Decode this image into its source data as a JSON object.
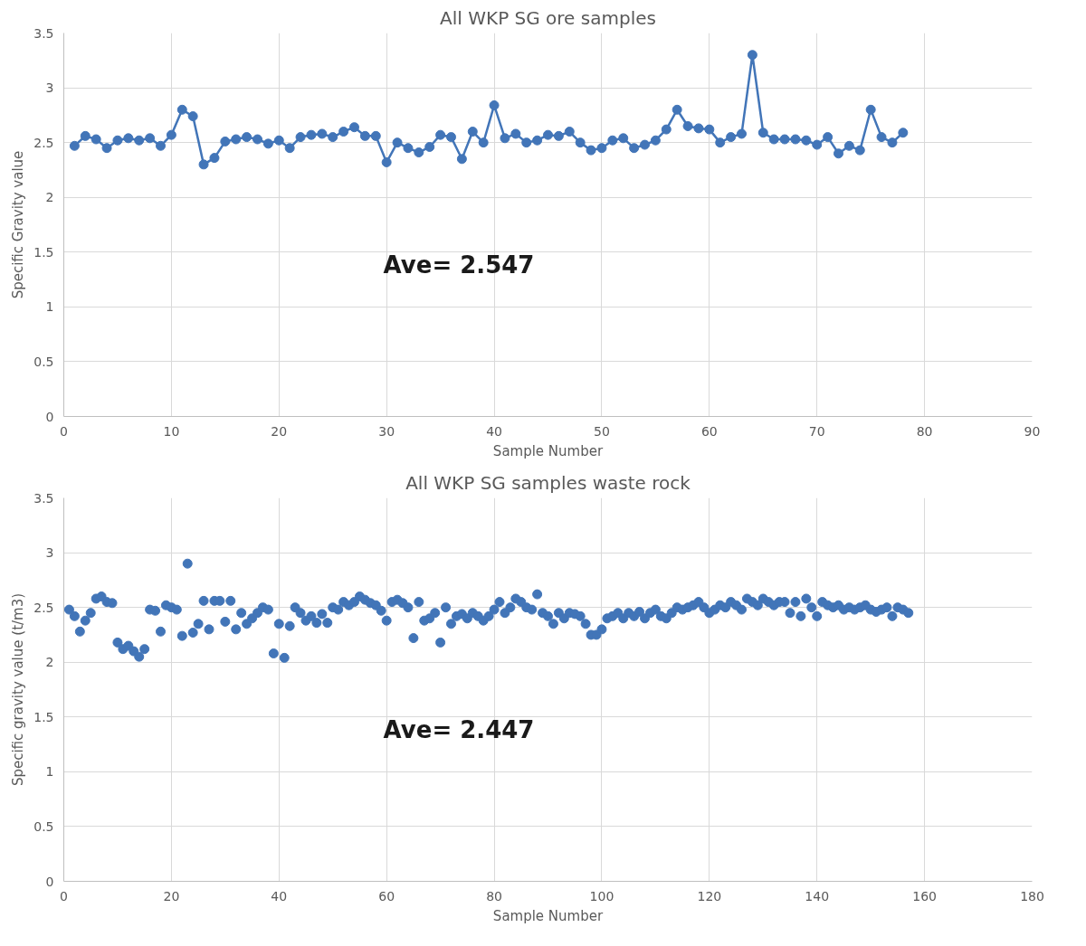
{
  "chart_data": [
    {
      "type": "line",
      "title": "All WKP SG ore samples",
      "xlabel": "Sample Number",
      "ylabel": "Specific Gravity value",
      "annotations": [
        "Ave= 2.547"
      ],
      "marker": "circle",
      "line_style": "solid",
      "grid": true,
      "xlim": [
        0,
        90
      ],
      "xticks": [
        0,
        10,
        20,
        30,
        40,
        50,
        60,
        70,
        80,
        90
      ],
      "ylim": [
        0,
        3.5
      ],
      "yticks": [
        0,
        0.5,
        1,
        1.5,
        2,
        2.5,
        3,
        3.5
      ],
      "x": [
        1,
        2,
        3,
        4,
        5,
        6,
        7,
        8,
        9,
        10,
        11,
        12,
        13,
        14,
        15,
        16,
        17,
        18,
        19,
        20,
        21,
        22,
        23,
        24,
        25,
        26,
        27,
        28,
        29,
        30,
        31,
        32,
        33,
        34,
        35,
        36,
        37,
        38,
        39,
        40,
        41,
        42,
        43,
        44,
        45,
        46,
        47,
        48,
        49,
        50,
        51,
        52,
        53,
        54,
        55,
        56,
        57,
        58,
        59,
        60,
        61,
        62,
        63,
        64,
        65,
        66,
        67,
        68,
        69,
        70,
        71,
        72,
        73,
        74,
        75,
        76,
        77,
        78
      ],
      "series": [
        {
          "color": "#4275b8",
          "values": [
            2.47,
            2.56,
            2.53,
            2.45,
            2.52,
            2.54,
            2.52,
            2.54,
            2.47,
            2.57,
            2.8,
            2.74,
            2.3,
            2.36,
            2.51,
            2.53,
            2.55,
            2.53,
            2.49,
            2.52,
            2.45,
            2.55,
            2.57,
            2.58,
            2.55,
            2.6,
            2.64,
            2.56,
            2.56,
            2.32,
            2.5,
            2.45,
            2.41,
            2.46,
            2.57,
            2.55,
            2.35,
            2.6,
            2.5,
            2.84,
            2.54,
            2.58,
            2.5,
            2.52,
            2.57,
            2.56,
            2.6,
            2.5,
            2.43,
            2.45,
            2.52,
            2.54,
            2.45,
            2.48,
            2.52,
            2.62,
            2.8,
            2.65,
            2.63,
            2.62,
            2.5,
            2.55,
            2.58,
            3.3,
            2.59,
            2.53,
            2.53,
            2.53,
            2.52,
            2.48,
            2.55,
            2.4,
            2.47,
            2.43,
            2.8,
            2.55,
            2.5,
            2.59
          ]
        }
      ]
    },
    {
      "type": "scatter",
      "title": "All WKP SG samples waste rock",
      "xlabel": "Sample Number",
      "ylabel": "Specific gravity value (t/m3)",
      "annotations": [
        "Ave= 2.447"
      ],
      "marker": "circle",
      "grid": true,
      "xlim": [
        0,
        180
      ],
      "xticks": [
        0,
        20,
        40,
        60,
        80,
        100,
        120,
        140,
        160,
        180
      ],
      "ylim": [
        0,
        3.5
      ],
      "yticks": [
        0,
        0.5,
        1,
        1.5,
        2,
        2.5,
        3,
        3.5
      ],
      "x": [
        1,
        2,
        3,
        4,
        5,
        6,
        7,
        8,
        9,
        10,
        11,
        12,
        13,
        14,
        15,
        16,
        17,
        18,
        19,
        20,
        21,
        22,
        23,
        24,
        25,
        26,
        27,
        28,
        29,
        30,
        31,
        32,
        33,
        34,
        35,
        36,
        37,
        38,
        39,
        40,
        41,
        42,
        43,
        44,
        45,
        46,
        47,
        48,
        49,
        50,
        51,
        52,
        53,
        54,
        55,
        56,
        57,
        58,
        59,
        60,
        61,
        62,
        63,
        64,
        65,
        66,
        67,
        68,
        69,
        70,
        71,
        72,
        73,
        74,
        75,
        76,
        77,
        78,
        79,
        80,
        81,
        82,
        83,
        84,
        85,
        86,
        87,
        88,
        89,
        90,
        91,
        92,
        93,
        94,
        95,
        96,
        97,
        98,
        99,
        100,
        101,
        102,
        103,
        104,
        105,
        106,
        107,
        108,
        109,
        110,
        111,
        112,
        113,
        114,
        115,
        116,
        117,
        118,
        119,
        120,
        121,
        122,
        123,
        124,
        125,
        126,
        127,
        128,
        129,
        130,
        131,
        132,
        133,
        134,
        135,
        136,
        137,
        138,
        139,
        140,
        141,
        142,
        143,
        144,
        145,
        146,
        147,
        148,
        149,
        150,
        151,
        152,
        153,
        154,
        155,
        156,
        157
      ],
      "series": [
        {
          "color": "#4275b8",
          "values": [
            2.48,
            2.42,
            2.28,
            2.38,
            2.45,
            2.58,
            2.6,
            2.55,
            2.54,
            2.18,
            2.12,
            2.15,
            2.1,
            2.05,
            2.12,
            2.48,
            2.47,
            2.28,
            2.52,
            2.5,
            2.48,
            2.24,
            2.9,
            2.27,
            2.35,
            2.56,
            2.3,
            2.56,
            2.56,
            2.37,
            2.56,
            2.3,
            2.45,
            2.35,
            2.4,
            2.45,
            2.5,
            2.48,
            2.08,
            2.35,
            2.04,
            2.33,
            2.5,
            2.45,
            2.38,
            2.42,
            2.36,
            2.44,
            2.36,
            2.5,
            2.48,
            2.55,
            2.52,
            2.55,
            2.6,
            2.57,
            2.54,
            2.52,
            2.47,
            2.38,
            2.55,
            2.57,
            2.54,
            2.5,
            2.22,
            2.55,
            2.38,
            2.4,
            2.45,
            2.18,
            2.5,
            2.35,
            2.42,
            2.44,
            2.4,
            2.45,
            2.42,
            2.38,
            2.42,
            2.48,
            2.55,
            2.45,
            2.5,
            2.58,
            2.55,
            2.5,
            2.48,
            2.62,
            2.45,
            2.42,
            2.35,
            2.45,
            2.4,
            2.45,
            2.44,
            2.42,
            2.35,
            2.25,
            2.25,
            2.3,
            2.4,
            2.42,
            2.45,
            2.4,
            2.45,
            2.42,
            2.46,
            2.4,
            2.45,
            2.48,
            2.42,
            2.4,
            2.45,
            2.5,
            2.48,
            2.5,
            2.52,
            2.55,
            2.5,
            2.45,
            2.48,
            2.52,
            2.5,
            2.55,
            2.52,
            2.48,
            2.58,
            2.55,
            2.52,
            2.58,
            2.55,
            2.52,
            2.55,
            2.55,
            2.45,
            2.55,
            2.42,
            2.58,
            2.5,
            2.42,
            2.55,
            2.52,
            2.5,
            2.52,
            2.48,
            2.5,
            2.48,
            2.5,
            2.52,
            2.48,
            2.46,
            2.48,
            2.5,
            2.42,
            2.5,
            2.48,
            2.45
          ]
        }
      ]
    }
  ]
}
